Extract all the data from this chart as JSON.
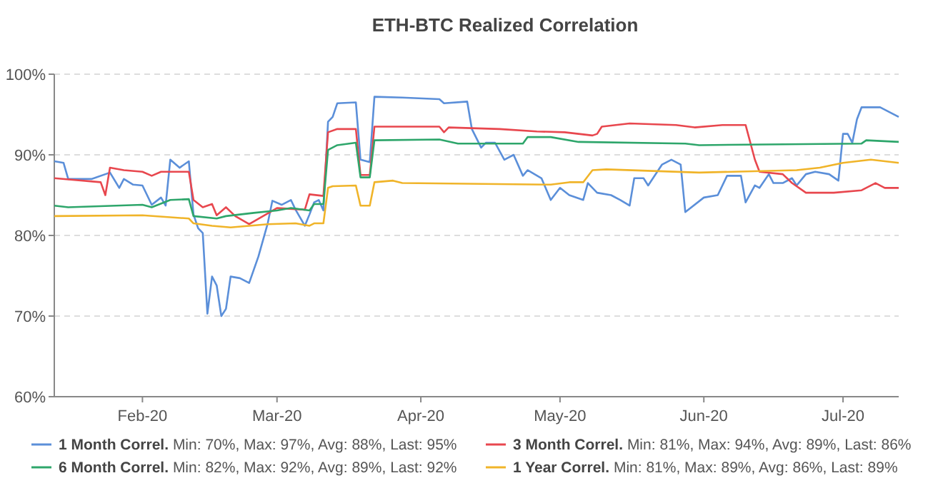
{
  "chart_data": {
    "type": "line",
    "title": "ETH-BTC Realized Correlation",
    "legend": "bottom",
    "grid": "y",
    "marker": "none",
    "line_style": "solid",
    "xlim": [
      "2020-01-13",
      "2020-07-13"
    ],
    "xticks": [
      {
        "value": "2020-02-01",
        "label": "Feb-20"
      },
      {
        "value": "2020-03-01",
        "label": "Mar-20"
      },
      {
        "value": "2020-04-01",
        "label": "Apr-20"
      },
      {
        "value": "2020-05-01",
        "label": "May-20"
      },
      {
        "value": "2020-06-01",
        "label": "Jun-20"
      },
      {
        "value": "2020-07-01",
        "label": "Jul-20"
      }
    ],
    "ylim": [
      60,
      100
    ],
    "yticks": [
      {
        "value": 60,
        "label": "60%"
      },
      {
        "value": 70,
        "label": "70%"
      },
      {
        "value": 80,
        "label": "80%"
      },
      {
        "value": 90,
        "label": "90%"
      },
      {
        "value": 100,
        "label": "100%"
      }
    ],
    "annotations": [
      "Min: 70%, Max: 97%, Avg: 88%, Last: 95%",
      "Min: 81%, Max: 94%, Avg: 89%, Last: 86%",
      "Min: 82%, Max: 92%, Avg: 89%, Last: 92%",
      "Min: 81%, Max: 89%, Avg: 86%, Last: 89%"
    ],
    "series": [
      {
        "name": "1 Month Correl.",
        "color": "#5b8fd9",
        "x": [
          "2020-01-13",
          "2020-01-15",
          "2020-01-16",
          "2020-01-21",
          "2020-01-25",
          "2020-01-27",
          "2020-01-28",
          "2020-01-30",
          "2020-02-01",
          "2020-02-03",
          "2020-02-05",
          "2020-02-06",
          "2020-02-07",
          "2020-02-09",
          "2020-02-11",
          "2020-02-12",
          "2020-02-13",
          "2020-02-14",
          "2020-02-15",
          "2020-02-16",
          "2020-02-17",
          "2020-02-18",
          "2020-02-19",
          "2020-02-20",
          "2020-02-22",
          "2020-02-24",
          "2020-02-26",
          "2020-02-28",
          "2020-02-29",
          "2020-03-02",
          "2020-03-04",
          "2020-03-05",
          "2020-03-07",
          "2020-03-08",
          "2020-03-09",
          "2020-03-10",
          "2020-03-11",
          "2020-03-12",
          "2020-03-13",
          "2020-03-14",
          "2020-03-18",
          "2020-03-19",
          "2020-03-21",
          "2020-03-22",
          "2020-03-28",
          "2020-04-05",
          "2020-04-06",
          "2020-04-11",
          "2020-04-12",
          "2020-04-14",
          "2020-04-15",
          "2020-04-17",
          "2020-04-19",
          "2020-04-21",
          "2020-04-23",
          "2020-04-24",
          "2020-04-27",
          "2020-04-29",
          "2020-05-01",
          "2020-05-03",
          "2020-05-06",
          "2020-05-07",
          "2020-05-09",
          "2020-05-12",
          "2020-05-14",
          "2020-05-16",
          "2020-05-17",
          "2020-05-19",
          "2020-05-20",
          "2020-05-23",
          "2020-05-25",
          "2020-05-27",
          "2020-05-28",
          "2020-06-01",
          "2020-06-04",
          "2020-06-06",
          "2020-06-09",
          "2020-06-10",
          "2020-06-12",
          "2020-06-13",
          "2020-06-15",
          "2020-06-16",
          "2020-06-18",
          "2020-06-20",
          "2020-06-21",
          "2020-06-23",
          "2020-06-25",
          "2020-06-28",
          "2020-06-30",
          "2020-07-01",
          "2020-07-02",
          "2020-07-03",
          "2020-07-04",
          "2020-07-05",
          "2020-07-09",
          "2020-07-13"
        ],
        "values": [
          89.2,
          89,
          87,
          87,
          87.8,
          85.9,
          87,
          86.3,
          86.2,
          83.8,
          84.7,
          83.7,
          89.4,
          88.4,
          89.2,
          82.6,
          80.9,
          80.3,
          70.3,
          74.9,
          73.8,
          70,
          70.9,
          74.9,
          74.7,
          74.1,
          77.4,
          81.5,
          84.3,
          83.8,
          84.4,
          83.2,
          81.2,
          82.6,
          84.1,
          84.4,
          83.1,
          94.1,
          94.7,
          96.4,
          96.5,
          89.4,
          89.1,
          97.2,
          97.1,
          96.9,
          96.4,
          96.6,
          93.2,
          90.9,
          91.5,
          91.5,
          89.4,
          90,
          87.4,
          88.1,
          87.1,
          84.4,
          85.9,
          85,
          84.4,
          86.5,
          85.3,
          85,
          84.4,
          83.7,
          87.1,
          87.1,
          86.2,
          88.8,
          89.4,
          88.8,
          82.9,
          84.7,
          85,
          87.4,
          87.4,
          84.1,
          86.2,
          85.9,
          87.6,
          86.5,
          86.5,
          87.1,
          86.2,
          87.6,
          87.9,
          87.6,
          86.8,
          92.6,
          92.6,
          91.5,
          94.4,
          95.9,
          95.9,
          94.7
        ]
      },
      {
        "name": "3 Month Correl.",
        "color": "#e8474e",
        "x": [
          "2020-01-13",
          "2020-01-23",
          "2020-01-24",
          "2020-01-25",
          "2020-01-28",
          "2020-02-01",
          "2020-02-03",
          "2020-02-05",
          "2020-02-11",
          "2020-02-12",
          "2020-02-14",
          "2020-02-16",
          "2020-02-17",
          "2020-02-19",
          "2020-02-21",
          "2020-02-24",
          "2020-02-27",
          "2020-03-01",
          "2020-03-07",
          "2020-03-08",
          "2020-03-11",
          "2020-03-12",
          "2020-03-14",
          "2020-03-18",
          "2020-03-19",
          "2020-03-21",
          "2020-03-22",
          "2020-04-05",
          "2020-04-06",
          "2020-04-07",
          "2020-04-18",
          "2020-04-26",
          "2020-05-02",
          "2020-05-08",
          "2020-05-09",
          "2020-05-10",
          "2020-05-16",
          "2020-05-26",
          "2020-05-30",
          "2020-06-05",
          "2020-06-10",
          "2020-06-12",
          "2020-06-13",
          "2020-06-18",
          "2020-06-20",
          "2020-06-23",
          "2020-06-29",
          "2020-07-05",
          "2020-07-08",
          "2020-07-10",
          "2020-07-13"
        ],
        "values": [
          87.1,
          86.6,
          85,
          88.4,
          88.1,
          87.9,
          87.4,
          87.9,
          87.9,
          84.4,
          83.5,
          83.9,
          82.5,
          83.5,
          82.4,
          81.4,
          82.4,
          83.4,
          83.2,
          85.1,
          84.9,
          92.8,
          93.2,
          93.2,
          87.5,
          87.5,
          93.5,
          93.5,
          92.8,
          93.4,
          93.2,
          92.9,
          92.8,
          92.4,
          92.6,
          93.5,
          93.9,
          93.7,
          93.4,
          93.7,
          93.7,
          89.4,
          87.9,
          87.6,
          86.5,
          85.3,
          85.3,
          85.6,
          86.5,
          85.9,
          85.9
        ]
      },
      {
        "name": "6 Month Correl.",
        "color": "#2ea66b",
        "x": [
          "2020-01-13",
          "2020-01-16",
          "2020-02-01",
          "2020-02-03",
          "2020-02-07",
          "2020-02-11",
          "2020-02-12",
          "2020-02-17",
          "2020-02-19",
          "2020-02-25",
          "2020-03-01",
          "2020-03-04",
          "2020-03-08",
          "2020-03-09",
          "2020-03-11",
          "2020-03-12",
          "2020-03-14",
          "2020-03-18",
          "2020-03-19",
          "2020-03-21",
          "2020-03-22",
          "2020-04-05",
          "2020-04-09",
          "2020-04-23",
          "2020-04-24",
          "2020-04-29",
          "2020-05-05",
          "2020-05-28",
          "2020-05-31",
          "2020-07-05",
          "2020-07-06",
          "2020-07-13"
        ],
        "values": [
          83.7,
          83.5,
          83.8,
          83.5,
          84.4,
          84.5,
          82.4,
          82.1,
          82.4,
          82.8,
          83.1,
          83.4,
          83.1,
          83.9,
          83.9,
          90.6,
          91.2,
          91.5,
          87.2,
          87.2,
          91.8,
          91.9,
          91.4,
          91.4,
          92.2,
          92.2,
          91.6,
          91.4,
          91.2,
          91.4,
          91.8,
          91.6
        ]
      },
      {
        "name": "1 Year Correl.",
        "color": "#f0b429",
        "x": [
          "2020-01-13",
          "2020-02-01",
          "2020-02-11",
          "2020-02-12",
          "2020-02-16",
          "2020-02-20",
          "2020-02-28",
          "2020-03-05",
          "2020-03-08",
          "2020-03-09",
          "2020-03-11",
          "2020-03-12",
          "2020-03-13",
          "2020-03-18",
          "2020-03-19",
          "2020-03-21",
          "2020-03-22",
          "2020-03-26",
          "2020-03-28",
          "2020-04-29",
          "2020-05-03",
          "2020-05-06",
          "2020-05-08",
          "2020-05-11",
          "2020-05-31",
          "2020-06-21",
          "2020-06-26",
          "2020-07-01",
          "2020-07-07",
          "2020-07-13"
        ],
        "values": [
          82.4,
          82.5,
          82.1,
          81.5,
          81.2,
          81,
          81.4,
          81.5,
          81.2,
          81.5,
          81.5,
          85.9,
          86.1,
          86.2,
          83.7,
          83.7,
          86.6,
          86.8,
          86.5,
          86.3,
          86.6,
          86.6,
          88.1,
          88.2,
          87.8,
          88.1,
          88.4,
          89,
          89.4,
          89
        ]
      }
    ]
  }
}
